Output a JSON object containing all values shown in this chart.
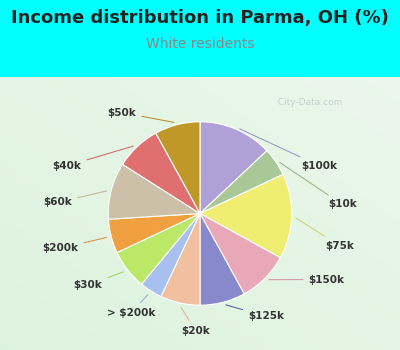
{
  "title": "Income distribution in Parma, OH (%)",
  "subtitle": "White residents",
  "bg_cyan": "#00ffff",
  "chart_bg_top": "#e8f8f0",
  "chart_bg_bottom": "#cceedd",
  "labels": [
    "$100k",
    "$10k",
    "$75k",
    "$150k",
    "$125k",
    "$20k",
    "> $200k",
    "$30k",
    "$200k",
    "$60k",
    "$40k",
    "$50k"
  ],
  "values": [
    13,
    5,
    15,
    9,
    8,
    7,
    4,
    7,
    6,
    10,
    8,
    8
  ],
  "colors": [
    "#b0a0d8",
    "#a8c898",
    "#f0ee70",
    "#e8a8b8",
    "#8888cc",
    "#f0c0a0",
    "#a8c0f0",
    "#bce868",
    "#f0a040",
    "#ccc0a8",
    "#e07070",
    "#c09828"
  ],
  "label_fontsize": 7.5,
  "title_fontsize": 13,
  "subtitle_fontsize": 10,
  "subtitle_color": "#888888",
  "watermark_color": "#b0b8c0",
  "label_color": "#333333"
}
